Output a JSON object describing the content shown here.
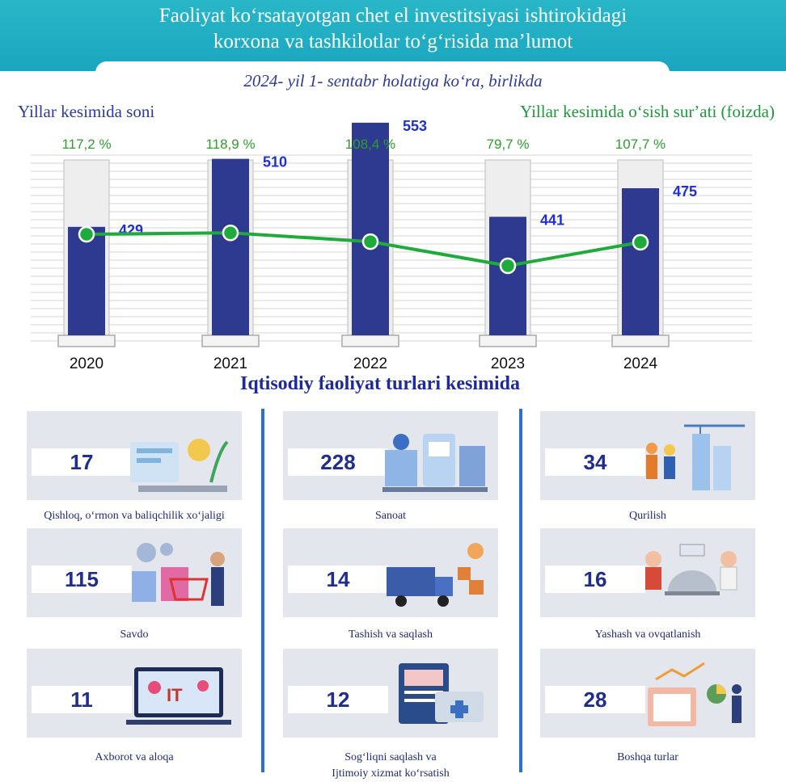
{
  "header": {
    "title_line1": "Faoliyat koʻrsatayotgan chet el investitsiyasi ishtirokidagi",
    "title_line2": "korxona va tashkilotlar toʻgʻrisida maʼlumot",
    "subtitle": "2024- yil 1- sentabr holatiga koʻra, birlikda"
  },
  "chart_labels": {
    "left": "Yillar kesimida soni",
    "right": "Yillar kesimida oʻsish surʼati (foizda)"
  },
  "chart_data": {
    "type": "bar",
    "categories": [
      "2020",
      "2021",
      "2022",
      "2023",
      "2024"
    ],
    "series": [
      {
        "name": "Yillar kesimida soni",
        "type": "bar",
        "values": [
          429,
          510,
          553,
          441,
          475
        ],
        "labels": [
          "429",
          "510",
          "553",
          "441",
          "475"
        ]
      },
      {
        "name": "Yillar kesimida oʻsish surʼati (foizda)",
        "type": "line",
        "values": [
          117.2,
          118.9,
          108.4,
          79.7,
          107.7
        ],
        "labels": [
          "117,2 %",
          "118,9 %",
          "108,4 %",
          "79,7 %",
          "107,7 %"
        ]
      }
    ],
    "colors": {
      "bar": "#2e3a8f",
      "line": "#1faa3c",
      "bar_label": "#1f2fd6",
      "pct_label": "#2ca02c"
    }
  },
  "section": {
    "title": "Iqtisodiy faoliyat turlari kesimida"
  },
  "categories": [
    {
      "value": "17",
      "label": "Qishloq, oʻrmon va baliqchilik xoʻjaligi",
      "icon": "agriculture-icon"
    },
    {
      "value": "228",
      "label": "Sanoat",
      "icon": "industry-icon"
    },
    {
      "value": "34",
      "label": "Qurilish",
      "icon": "construction-icon"
    },
    {
      "value": "115",
      "label": "Savdo",
      "icon": "trade-icon"
    },
    {
      "value": "14",
      "label": "Tashish va saqlash",
      "icon": "transport-icon"
    },
    {
      "value": "16",
      "label": "Yashash va ovqatlanish",
      "icon": "hospitality-icon"
    },
    {
      "value": "11",
      "label": "Axborot va aloqa",
      "icon": "it-icon"
    },
    {
      "value": "12",
      "label": "Sogʻliqni saqlash va",
      "label2": "Ijtimoiy xizmat koʻrsatish",
      "icon": "health-icon"
    },
    {
      "value": "28",
      "label": "Boshqa turlar",
      "icon": "other-icon"
    }
  ]
}
